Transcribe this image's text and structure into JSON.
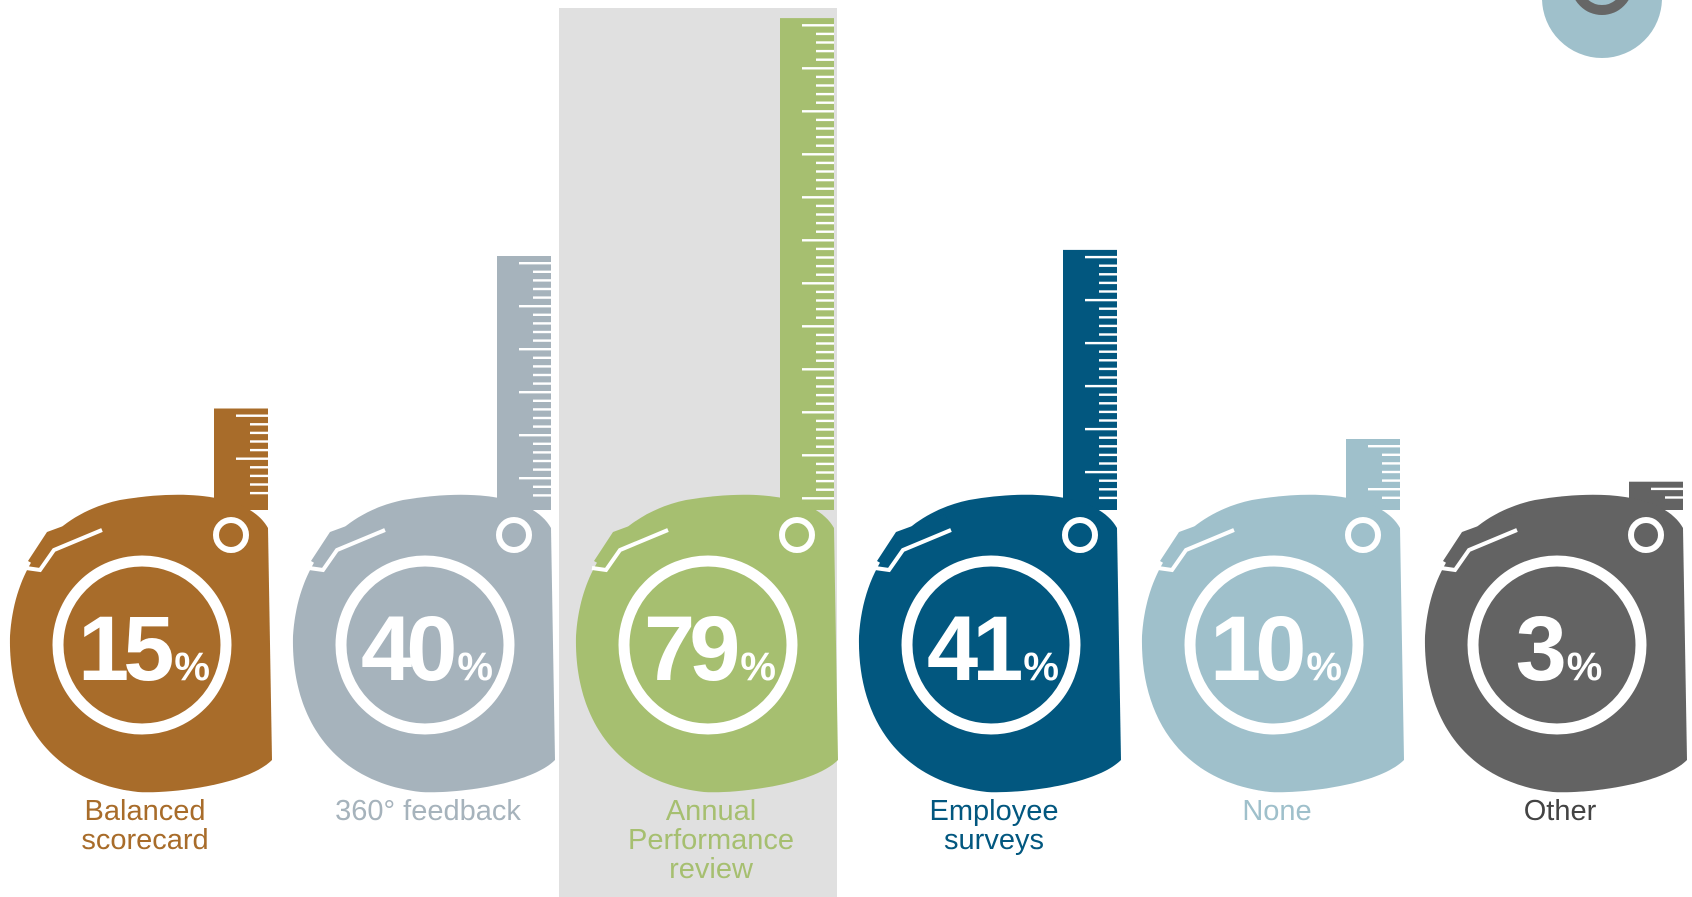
{
  "chart_data": {
    "type": "bar",
    "categories": [
      "Balanced scorecard",
      "360° feedback",
      "Annual Performance review",
      "Employee surveys",
      "None",
      "Other"
    ],
    "label_lines": [
      [
        "Balanced",
        "scorecard"
      ],
      [
        "360° feedback"
      ],
      [
        "Annual",
        "Performance",
        "review"
      ],
      [
        "Employee",
        "surveys"
      ],
      [
        "None"
      ],
      [
        "Other"
      ]
    ],
    "values": [
      15,
      40,
      79,
      41,
      10,
      3
    ],
    "unit": "%",
    "highlighted": "Annual Performance review",
    "colors": [
      "#a86c2a",
      "#a6b3bc",
      "#a6bf70",
      "#02577f",
      "#9fc0cb",
      "#636363"
    ],
    "label_colors": [
      "#a86c2a",
      "#a6b3bc",
      "#a6bf70",
      "#02577f",
      "#9fc0cb",
      "#444444"
    ],
    "highlight_color": "#e0e0e0",
    "corner_badge_color": "#9fc0cb",
    "corner_badge_ring_color": "#666666",
    "title": "",
    "xlabel": "",
    "ylabel": ""
  }
}
